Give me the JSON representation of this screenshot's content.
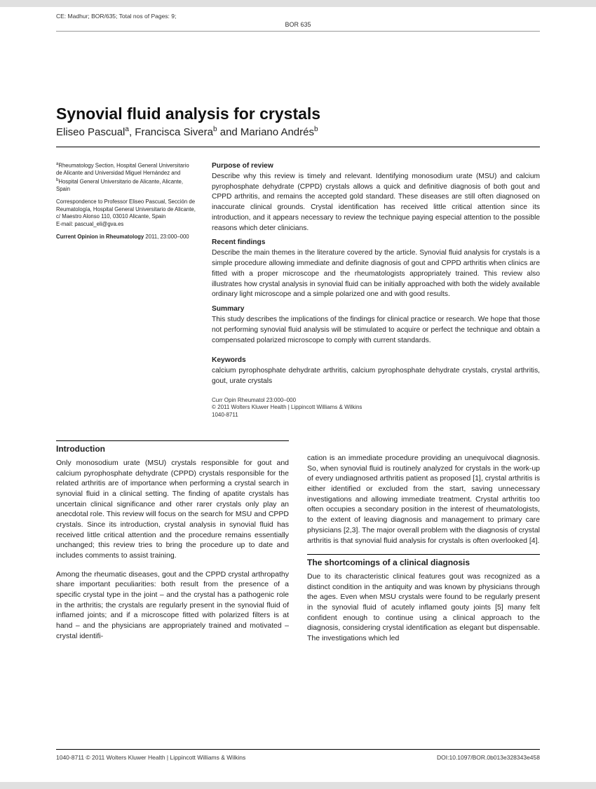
{
  "header": {
    "strip": "CE: Madhur; BOR/635; Total nos of Pages: 9;",
    "label": "BOR 635"
  },
  "title": "Synovial fluid analysis for crystals",
  "authors_html": "Eliseo Pascual<sup>a</sup>, Francisca Sivera<sup>b</sup> and Mariano Andrés<sup>b</sup>",
  "affiliations": {
    "line1": "<sup>a</sup>Rheumatology Section, Hospital General Universitario de Alicante and Universidad Miguel Hernández and <sup>b</sup>Hospital General Universitario de Alicante, Alicante, Spain",
    "correspondence": "Correspondence to Professor Eliseo Pascual, Sección de Reumatología, Hospital General Universitario de Alicante, c/ Maestro Alonso 110, 03010 Alicante, Spain",
    "email": "E-mail: pascual_eli@gva.es",
    "journal": "<b>Current Opinion in Rheumatology</b> 2011, 23:000–000"
  },
  "abstract": {
    "purpose_h": "Purpose of review",
    "purpose": "Describe why this review is timely and relevant. Identifying monosodium urate (MSU) and calcium pyrophosphate dehydrate (CPPD) crystals allows a quick and definitive diagnosis of both gout and CPPD arthritis, and remains the accepted gold standard. These diseases are still often diagnosed on inaccurate clinical grounds. Crystal identification has received little critical attention since its introduction, and it appears necessary to review the technique paying especial attention to the possible reasons which deter clinicians.",
    "recent_h": "Recent findings",
    "recent": "Describe the main themes in the literature covered by the article. Synovial fluid analysis for crystals is a simple procedure allowing immediate and definite diagnosis of gout and CPPD arthritis when clinics are fitted with a proper microscope and the rheumatologists appropriately trained. This review also illustrates how crystal analysis in synovial fluid can be initially approached with both the widely available ordinary light microscope and a simple polarized one and with good results.",
    "summary_h": "Summary",
    "summary": "This study describes the implications of the findings for clinical practice or research. We hope that those not performing synovial fluid analysis will be stimulated to acquire or perfect the technique and obtain a compensated polarized microscope to comply with current standards.",
    "keywords_h": "Keywords",
    "keywords": "calcium pyrophosphate dehydrate arthritis, calcium pyrophosphate dehydrate crystals, crystal arthritis, gout, urate crystals",
    "citation1": "Curr Opin Rheumatol 23:000–000",
    "citation2": "© 2011 Wolters Kluwer Health | Lippincott Williams & Wilkins",
    "citation3": "1040-8711"
  },
  "body": {
    "intro_h": "Introduction",
    "intro_p1": "Only monosodium urate (MSU) crystals responsible for gout and calcium pyrophosphate dehydrate (CPPD) crystals responsible for the related arthritis are of importance when performing a crystal search in synovial fluid in a clinical setting. The finding of apatite crystals has uncertain clinical significance and other rarer crystals only play an anecdotal role. This review will focus on the search for MSU and CPPD crystals. Since its introduction, crystal analysis in synovial fluid has received little critical attention and the procedure remains essentially unchanged; this review tries to bring the procedure up to date and includes comments to assist training.",
    "intro_p2": "Among the rheumatic diseases, gout and the CPPD crystal arthropathy share important peculiarities: both result from the presence of a specific crystal type in the joint – and the crystal has a pathogenic role in the arthritis; the crystals are regularly present in the synovial fluid of inflamed joints; and if a microscope fitted with polarized filters is at hand – and the physicians are appropriately trained and motivated – crystal identifi-",
    "col2_p1": "cation is an immediate procedure providing an unequivocal diagnosis. So, when synovial fluid is routinely analyzed for crystals in the work-up of every undiagnosed arthritis patient as proposed [1], crystal arthritis is either identified or excluded from the start, saving unnecessary investigations and allowing immediate treatment. Crystal arthritis too often occupies a secondary position in the interest of rheumatologists, to the extent of leaving diagnosis and management to primary care physicians [2,3]. The major overall problem with the diagnosis of crystal arthritis is that synovial fluid analysis for crystals is often overlooked [4].",
    "short_h": "The shortcomings of a clinical diagnosis",
    "short_p1": "Due to its characteristic clinical features gout was recognized as a distinct condition in the antiquity and was known by physicians through the ages. Even when MSU crystals were found to be regularly present in the synovial fluid of acutely inflamed gouty joints [5] many felt confident enough to continue using a clinical approach to the diagnosis, considering crystal identification as elegant but dispensable. The investigations which led"
  },
  "footer": {
    "left": "1040-8711 © 2011 Wolters Kluwer Health | Lippincott Williams & Wilkins",
    "right": "DOI:10.1097/BOR.0b013e328343e458"
  }
}
